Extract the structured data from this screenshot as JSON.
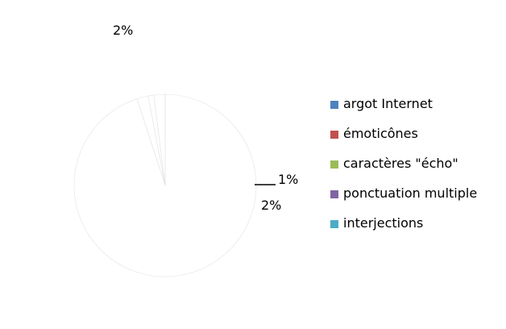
{
  "chart_data": {
    "type": "pie",
    "title": "",
    "categories": [
      "argot Internet",
      "émoticônes",
      "caractères \"écho\"",
      "ponctuation multiple",
      "interjections"
    ],
    "values": [
      95,
      2,
      1,
      0,
      2
    ],
    "value_labels": [
      "",
      "2%",
      "1%",
      "",
      "2%"
    ],
    "colors": [
      "#4F81BD",
      "#C0504D",
      "#9BBB59",
      "#8064A2",
      "#4BACC6"
    ],
    "legend_position": "right"
  }
}
